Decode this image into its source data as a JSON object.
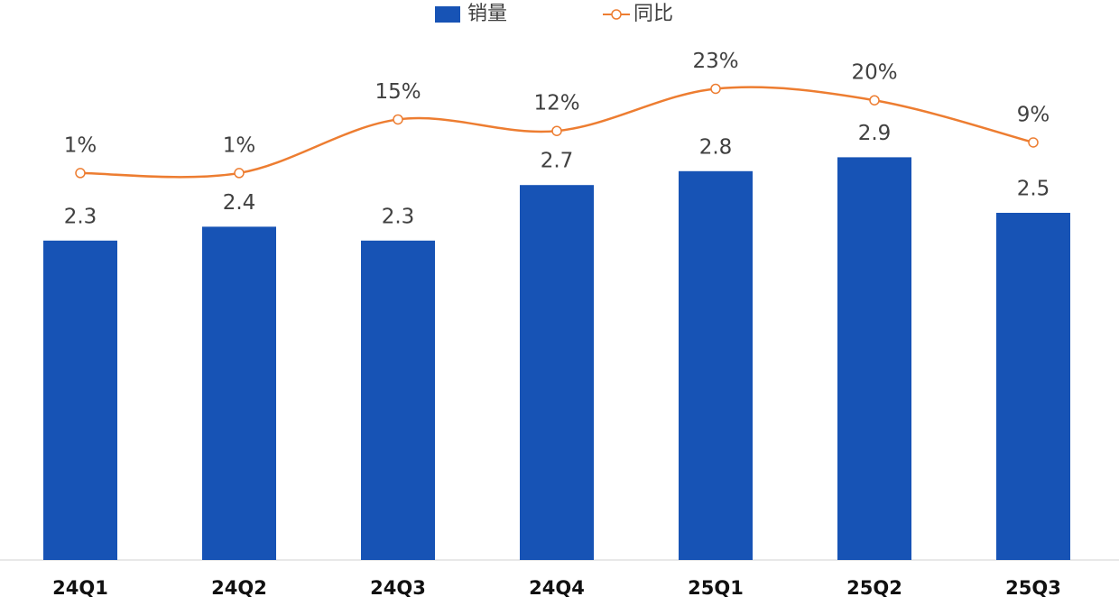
{
  "chart_data": {
    "type": "bar",
    "categories": [
      "24Q1",
      "24Q2",
      "24Q3",
      "24Q4",
      "25Q1",
      "25Q2",
      "25Q3"
    ],
    "series": [
      {
        "name": "销量",
        "color": "#1753b5",
        "values": [
          2.3,
          2.4,
          2.3,
          2.7,
          2.8,
          2.9,
          2.5
        ]
      },
      {
        "name": "同比",
        "color": "#ed7d31",
        "axis": "y2",
        "type": "line",
        "values": [
          1,
          1,
          15,
          12,
          23,
          20,
          9
        ],
        "value_labels": [
          "1%",
          "1%",
          "15%",
          "12%",
          "23%",
          "20%",
          "9%"
        ]
      }
    ],
    "ylim": [
      0,
      4
    ],
    "y2lim": [
      -100,
      45
    ],
    "legend": "top"
  }
}
